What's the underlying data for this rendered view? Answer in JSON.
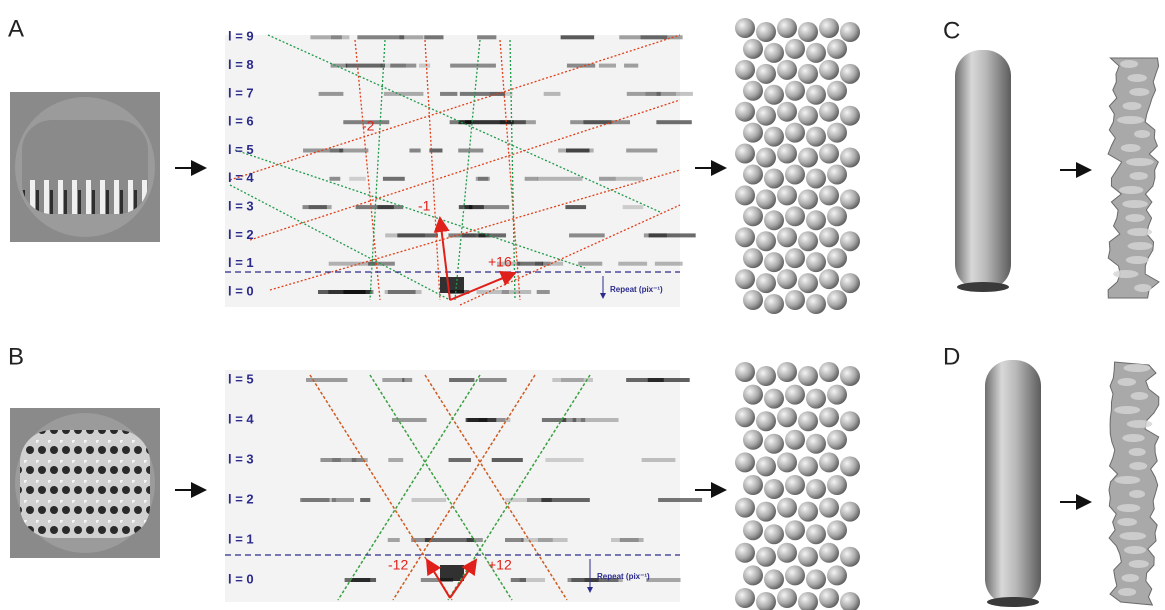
{
  "panel_a": {
    "label": "A",
    "layer_lines": [
      "l = 0",
      "l = 1",
      "l = 2",
      "l = 3",
      "l = 4",
      "l = 5",
      "l = 6",
      "l = 7",
      "l = 8",
      "l = 9"
    ],
    "annotations": [
      "-2",
      "-1",
      "+16"
    ],
    "repeat_label": "Repeat (pix⁻¹)"
  },
  "panel_b": {
    "label": "B",
    "layer_lines": [
      "l = 0",
      "l = 1",
      "l = 2",
      "l = 3",
      "l = 4",
      "l = 5"
    ],
    "annotations": [
      "-12",
      "+12"
    ],
    "repeat_label": "Repeat (pix⁻¹)"
  },
  "panel_c": {
    "label": "C"
  },
  "panel_d": {
    "label": "D"
  }
}
